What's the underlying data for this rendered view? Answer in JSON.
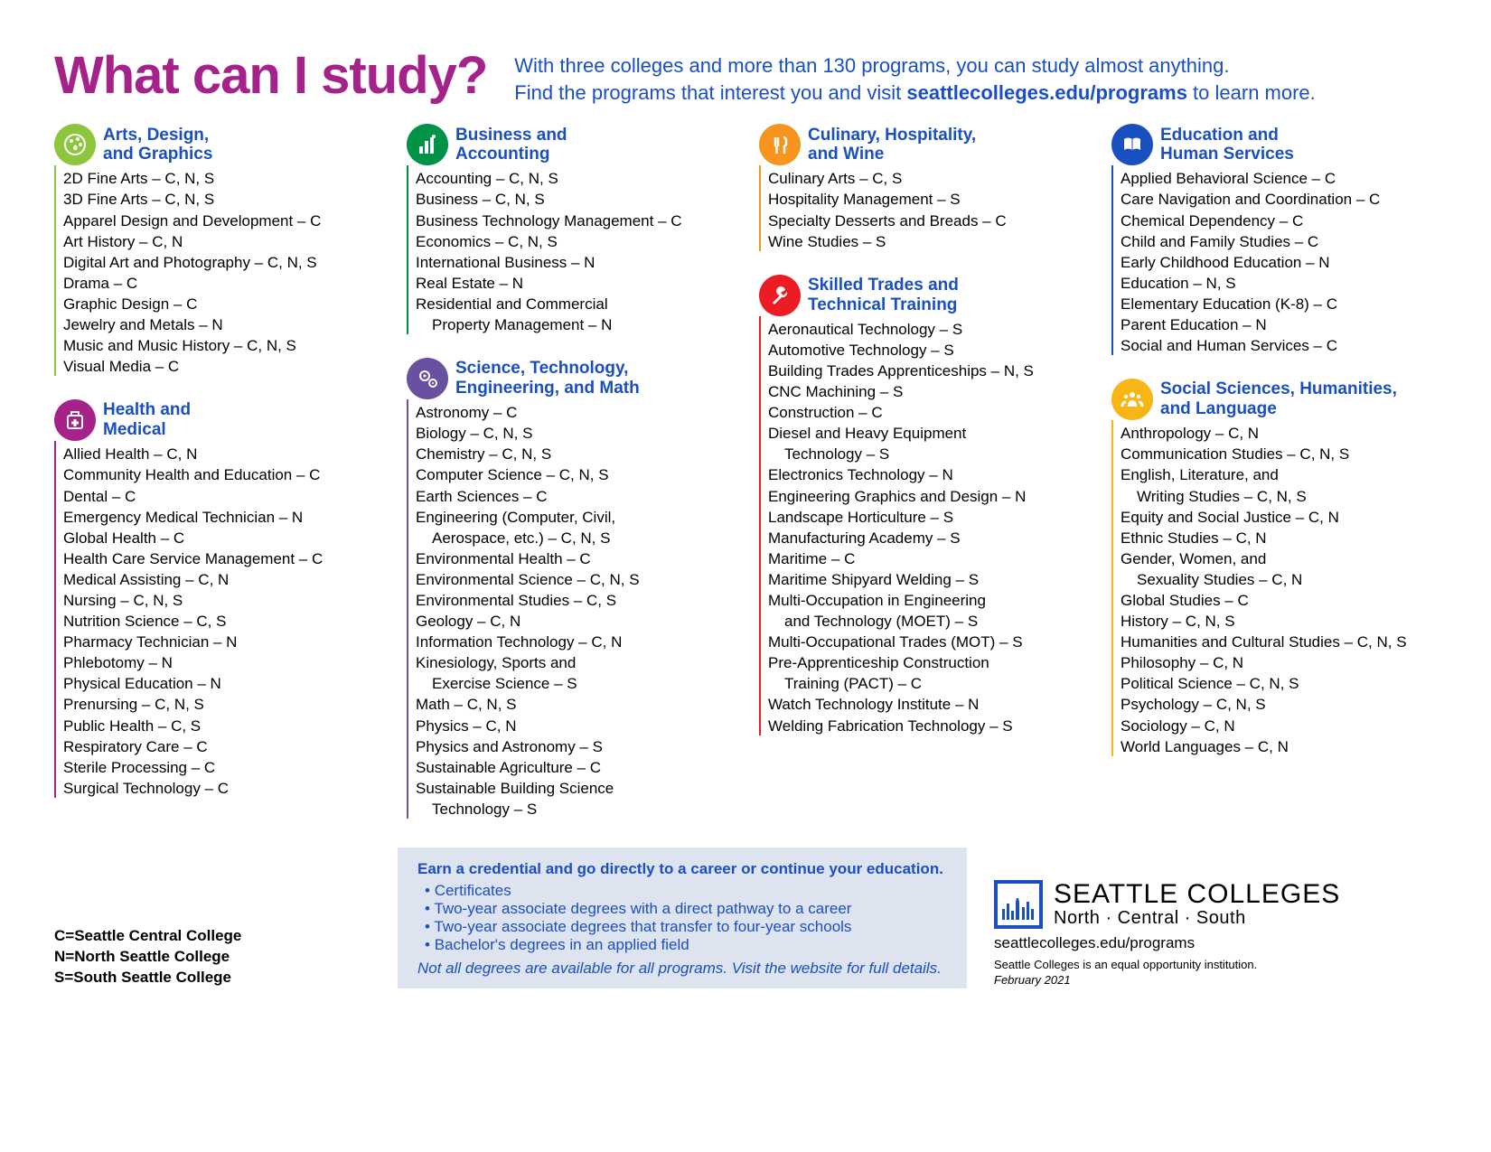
{
  "title": "What can I study?",
  "intro_line1": "With three colleges and more than 130 programs, you can study almost anything.",
  "intro_line2a": "Find the programs that interest you and visit ",
  "intro_line2b": "seattlecolleges.edu/programs",
  "intro_line2c": " to learn more.",
  "colors": {
    "title": "#a6228b",
    "blue": "#1a4fc2",
    "credbox_bg": "#dee3f0"
  },
  "columns": [
    [
      {
        "icon": "palette",
        "color": "#8cc63f",
        "title": "Arts, Design,\nand Graphics",
        "items": [
          "2D Fine Arts – C, N, S",
          "3D Fine Arts – C, N, S",
          "Apparel Design and Development – C",
          "Art History – C, N",
          "Digital Art and Photography – C, N, S",
          "Drama – C",
          "Graphic Design – C",
          "Jewelry and Metals – N",
          "Music and Music History – C, N, S",
          "Visual Media – C"
        ]
      },
      {
        "icon": "medical",
        "color": "#a6228b",
        "title": "Health and\nMedical",
        "items": [
          "Allied Health – C, N",
          "Community Health and Education – C",
          "Dental – C",
          "Emergency Medical Technician – N",
          "Global Health – C",
          "Health Care Service Management – C",
          "Medical Assisting – C, N",
          "Nursing – C, N, S",
          "Nutrition Science – C, S",
          "Pharmacy Technician – N",
          "Phlebotomy – N",
          "Physical Education – N",
          "Prenursing – C, N, S",
          "Public Health – C, S",
          "Respiratory Care – C",
          "Sterile Processing – C",
          "Surgical Technology – C"
        ]
      }
    ],
    [
      {
        "icon": "chart",
        "color": "#009247",
        "title": "Business and\nAccounting",
        "items": [
          "Accounting – C, N, S",
          "Business – C, N, S",
          "Business Technology Management – C",
          "Economics – C, N, S",
          "International Business – N",
          "Real Estate – N",
          "Residential and Commercial",
          "   Property Management – N"
        ],
        "indents": [
          7
        ]
      },
      {
        "icon": "gears",
        "color": "#6950a1",
        "title": "Science, Technology,\nEngineering, and Math",
        "items": [
          "Astronomy – C",
          "Biology – C, N, S",
          "Chemistry – C, N, S",
          "Computer Science – C, N, S",
          "Earth Sciences – C",
          "Engineering (Computer, Civil,",
          "   Aerospace, etc.) – C, N, S",
          "Environmental Health – C",
          "Environmental Science – C, N, S",
          "Environmental Studies – C, S",
          "Geology – C, N",
          "Information Technology – C, N",
          "Kinesiology, Sports and",
          "   Exercise Science – S",
          "Math – C, N, S",
          "Physics – C, N",
          "Physics and Astronomy – S",
          "Sustainable Agriculture – C",
          "Sustainable Building Science",
          "   Technology – S"
        ],
        "indents": [
          6,
          13,
          19
        ]
      }
    ],
    [
      {
        "icon": "culinary",
        "color": "#f7941d",
        "title": "Culinary, Hospitality,\nand Wine",
        "items": [
          "Culinary Arts – C, S",
          "Hospitality Management – S",
          "Specialty Desserts and Breads – C",
          "Wine Studies – S"
        ]
      },
      {
        "icon": "wrench",
        "color": "#ed1c24",
        "title": "Skilled Trades and\nTechnical Training",
        "items": [
          "Aeronautical Technology – S",
          "Automotive Technology – S",
          "Building Trades Apprenticeships – N, S",
          "CNC Machining – S",
          "Construction – C",
          "Diesel and Heavy Equipment",
          "   Technology – S",
          "Electronics Technology – N",
          "Engineering Graphics and Design – N",
          "Landscape Horticulture – S",
          "Manufacturing Academy – S",
          "Maritime – C",
          "Maritime Shipyard Welding – S",
          "Multi-Occupation in Engineering",
          "   and Technology (MOET) – S",
          "Multi-Occupational Trades (MOT) – S",
          "Pre-Apprenticeship Construction",
          "   Training (PACT) – C",
          "Watch Technology Institute – N",
          "Welding Fabrication Technology – S"
        ],
        "indents": [
          6,
          14,
          17
        ]
      }
    ],
    [
      {
        "icon": "book",
        "color": "#1a4fc2",
        "title": "Education and\nHuman Services",
        "items": [
          "Applied Behavioral Science – C",
          "Care Navigation and Coordination – C",
          "Chemical Dependency – C",
          "Child and Family Studies – C",
          "Early Childhood Education – N",
          "Education – N, S",
          "Elementary Education (K-8) – C",
          "Parent Education – N",
          "Social and Human Services – C"
        ]
      },
      {
        "icon": "people",
        "color": "#f7b516",
        "title": "Social Sciences, Humanities,\nand Language",
        "items": [
          "Anthropology – C, N",
          "Communication Studies – C, N, S",
          "English, Literature, and",
          "   Writing Studies – C, N, S",
          "Equity and Social Justice – C, N",
          "Ethnic Studies – C, N",
          "Gender, Women, and",
          "   Sexuality Studies – C, N",
          "Global Studies – C",
          "History – C, N, S",
          "Humanities and Cultural Studies – C, N, S",
          "Philosophy – C, N",
          "Political Science – C, N, S",
          "Psychology – C, N, S",
          "Sociology – C, N",
          "World Languages – C, N"
        ],
        "indents": [
          3,
          7
        ]
      }
    ]
  ],
  "legend": [
    "C=Seattle Central College",
    "N=North Seattle College",
    "S=South Seattle College"
  ],
  "credbox": {
    "title": "Earn a credential and go directly to a career or continue your education.",
    "bullets": [
      "Certificates",
      "Two-year associate degrees with a direct pathway to a career",
      "Two-year associate degrees that transfer to four-year schools",
      "Bachelor's degrees in an applied field"
    ],
    "note": "Not all degrees are available for all programs. Visit the website for full details."
  },
  "brand": {
    "name": "SEATTLE COLLEGES",
    "sub": "North · Central · South",
    "url": "seattlecolleges.edu/programs",
    "eo": "Seattle Colleges is an equal opportunity institution.",
    "date": "February 2021"
  }
}
